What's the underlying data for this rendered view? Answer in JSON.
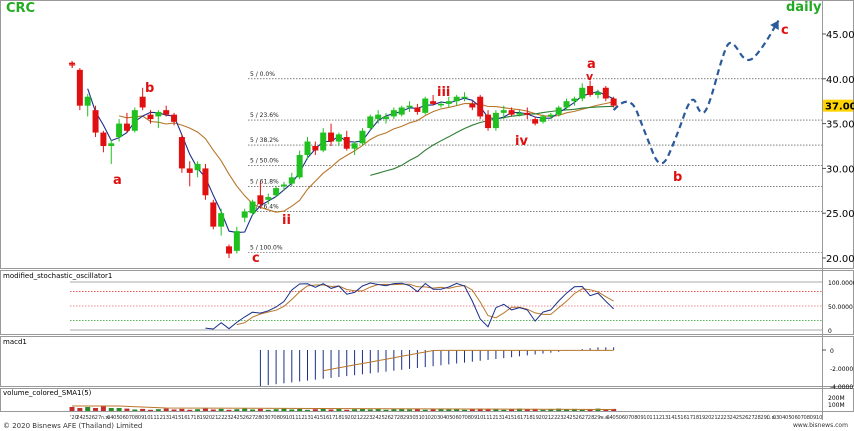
{
  "symbol": "CRC",
  "timeframe": "daily",
  "price_axis": {
    "ticks": [
      "45.00",
      "40.00",
      "35.00",
      "30.00",
      "25.00",
      "20.00"
    ],
    "current": "37.00"
  },
  "fib_levels": [
    {
      "label": "5 / 0.0%",
      "price": 40.0
    },
    {
      "label": "5 / 23.6%",
      "price": 35.4
    },
    {
      "label": "5 / 38.2%",
      "price": 32.6
    },
    {
      "label": "5 / 50.0%",
      "price": 30.3
    },
    {
      "label": "5 / 61.8%",
      "price": 28.0
    },
    {
      "label": "5 / 76.4%",
      "price": 25.2
    },
    {
      "label": "5 / 100.0%",
      "price": 20.6
    }
  ],
  "wave_labels": {
    "a1": "a",
    "b1": "b",
    "c1": "c",
    "ii": "ii",
    "iii": "iii",
    "iv": "iv",
    "a2": "a",
    "b2": "b",
    "c2": "c"
  },
  "panels": {
    "stoch": {
      "title": "modified_stochastic_oscillator1",
      "ticks": [
        "100.0000",
        "50.0000",
        "0"
      ]
    },
    "macd": {
      "title": "macd1",
      "ticks": [
        "0",
        "-2.0000",
        "-4.0000"
      ]
    },
    "volume": {
      "title": "volume_colored_SMA1(5)",
      "ticks": [
        "200M",
        "100M"
      ]
    }
  },
  "date_axis": {
    "labels": [
      "'20",
      "24",
      "25",
      "26",
      "27",
      "ก.พ.",
      "04",
      "05",
      "06",
      "07",
      "08",
      "09",
      "10",
      "11",
      "12",
      "13",
      "14",
      "15",
      "16",
      "17",
      "18",
      "19",
      "20",
      "21",
      "22",
      "23",
      "24",
      "25",
      "26",
      "27",
      "28",
      "03",
      "07",
      "08",
      "09",
      "10",
      "11",
      "12",
      "13",
      "14",
      "15",
      "16",
      "17",
      "18",
      "19",
      "20",
      "21",
      "22",
      "23",
      "24",
      "25",
      "26",
      "27",
      "28",
      "29",
      "30",
      "31",
      "01",
      "02",
      "03",
      "04",
      "05",
      "06",
      "07",
      "08",
      "09",
      "10",
      "11",
      "12",
      "13",
      "14",
      "15",
      "16",
      "17",
      "18",
      "19",
      "20",
      "21",
      "22",
      "23",
      "24",
      "25",
      "26",
      "27",
      "28",
      "29",
      "พ.ค.",
      "04",
      "05",
      "06",
      "07",
      "08",
      "09",
      "10",
      "11",
      "12",
      "13",
      "14",
      "15",
      "16",
      "17",
      "18",
      "19",
      "20",
      "21",
      "22",
      "23",
      "24",
      "25",
      "26",
      "27",
      "28",
      "29",
      "มิ.ย.",
      "03",
      "04",
      "05",
      "06",
      "07",
      "08",
      "09",
      "10"
    ]
  },
  "footer": {
    "copyright": "© 2020 Bisnews AFE (Thailand) Limited",
    "site": "www.bisnews.com"
  },
  "colors": {
    "up": "#20c020",
    "down": "#e01010",
    "sma_fast": "#1a2f8a",
    "sma_slow": "#b8762a",
    "sma_long": "#2e7d32",
    "forecast": "#2a5a9a",
    "label": "#e01010",
    "title": "#22aa22",
    "price_tag": "#ffd400"
  },
  "chart_data": {
    "type": "candlestick",
    "title": "CRC",
    "subtitle": "daily",
    "ylim": [
      18.5,
      47.5
    ],
    "candles": [
      {
        "o": 41.8,
        "h": 42.0,
        "l": 41.5,
        "c": 41.7
      },
      {
        "o": 41.0,
        "h": 41.2,
        "l": 36.5,
        "c": 37.0
      },
      {
        "o": 37.0,
        "h": 38.3,
        "l": 35.8,
        "c": 38.0
      },
      {
        "o": 36.5,
        "h": 37.0,
        "l": 33.5,
        "c": 34.0
      },
      {
        "o": 34.0,
        "h": 34.2,
        "l": 31.8,
        "c": 32.5
      },
      {
        "o": 32.5,
        "h": 33.2,
        "l": 30.5,
        "c": 32.8
      },
      {
        "o": 33.5,
        "h": 35.5,
        "l": 33.0,
        "c": 35.0
      },
      {
        "o": 35.0,
        "h": 36.2,
        "l": 34.0,
        "c": 34.2
      },
      {
        "o": 34.2,
        "h": 36.8,
        "l": 34.0,
        "c": 36.5
      },
      {
        "o": 38.0,
        "h": 39.0,
        "l": 36.5,
        "c": 36.8
      },
      {
        "o": 36.0,
        "h": 36.5,
        "l": 35.0,
        "c": 35.5
      },
      {
        "o": 35.8,
        "h": 36.5,
        "l": 34.5,
        "c": 36.3
      },
      {
        "o": 36.5,
        "h": 37.0,
        "l": 35.8,
        "c": 36.0
      },
      {
        "o": 36.0,
        "h": 36.2,
        "l": 34.8,
        "c": 35.2
      },
      {
        "o": 33.5,
        "h": 33.8,
        "l": 29.5,
        "c": 30.0
      },
      {
        "o": 30.0,
        "h": 30.8,
        "l": 28.0,
        "c": 29.5
      },
      {
        "o": 29.8,
        "h": 30.8,
        "l": 29.0,
        "c": 30.5
      },
      {
        "o": 30.0,
        "h": 30.5,
        "l": 26.5,
        "c": 27.0
      },
      {
        "o": 26.2,
        "h": 26.5,
        "l": 23.2,
        "c": 23.5
      },
      {
        "o": 23.5,
        "h": 25.5,
        "l": 22.5,
        "c": 25.0
      },
      {
        "o": 21.3,
        "h": 21.5,
        "l": 20.0,
        "c": 20.5
      },
      {
        "o": 20.8,
        "h": 23.5,
        "l": 20.5,
        "c": 23.0
      },
      {
        "o": 24.5,
        "h": 25.5,
        "l": 24.0,
        "c": 25.2
      },
      {
        "o": 25.0,
        "h": 26.5,
        "l": 24.8,
        "c": 26.3
      },
      {
        "o": 27.0,
        "h": 28.5,
        "l": 25.5,
        "c": 26.0
      },
      {
        "o": 26.5,
        "h": 27.2,
        "l": 26.0,
        "c": 26.8
      },
      {
        "o": 27.0,
        "h": 28.0,
        "l": 26.8,
        "c": 27.8
      },
      {
        "o": 28.0,
        "h": 28.5,
        "l": 27.5,
        "c": 28.2
      },
      {
        "o": 28.3,
        "h": 29.5,
        "l": 28.0,
        "c": 29.0
      },
      {
        "o": 29.0,
        "h": 32.0,
        "l": 28.8,
        "c": 31.5
      },
      {
        "o": 31.5,
        "h": 33.5,
        "l": 31.0,
        "c": 33.0
      },
      {
        "o": 32.5,
        "h": 33.0,
        "l": 31.5,
        "c": 32.0
      },
      {
        "o": 32.0,
        "h": 34.5,
        "l": 31.8,
        "c": 34.0
      },
      {
        "o": 34.0,
        "h": 35.0,
        "l": 32.5,
        "c": 33.0
      },
      {
        "o": 33.0,
        "h": 34.0,
        "l": 32.5,
        "c": 33.8
      },
      {
        "o": 33.5,
        "h": 34.2,
        "l": 32.0,
        "c": 32.2
      },
      {
        "o": 32.2,
        "h": 33.0,
        "l": 31.5,
        "c": 32.8
      },
      {
        "o": 32.8,
        "h": 34.5,
        "l": 32.5,
        "c": 34.2
      },
      {
        "o": 34.5,
        "h": 36.0,
        "l": 34.2,
        "c": 35.8
      },
      {
        "o": 35.5,
        "h": 36.5,
        "l": 35.0,
        "c": 36.0
      },
      {
        "o": 35.5,
        "h": 36.2,
        "l": 35.0,
        "c": 35.8
      },
      {
        "o": 35.8,
        "h": 36.8,
        "l": 35.5,
        "c": 36.5
      },
      {
        "o": 36.0,
        "h": 37.0,
        "l": 35.8,
        "c": 36.8
      },
      {
        "o": 36.8,
        "h": 37.5,
        "l": 36.3,
        "c": 37.0
      },
      {
        "o": 36.8,
        "h": 37.2,
        "l": 36.0,
        "c": 36.3
      },
      {
        "o": 36.2,
        "h": 38.0,
        "l": 36.0,
        "c": 37.8
      },
      {
        "o": 37.5,
        "h": 38.2,
        "l": 37.0,
        "c": 37.2
      },
      {
        "o": 37.2,
        "h": 37.5,
        "l": 36.8,
        "c": 37.2
      },
      {
        "o": 37.2,
        "h": 38.0,
        "l": 36.8,
        "c": 37.5
      },
      {
        "o": 37.5,
        "h": 38.2,
        "l": 37.0,
        "c": 38.0
      },
      {
        "o": 38.0,
        "h": 38.5,
        "l": 37.5,
        "c": 38.0
      },
      {
        "o": 37.2,
        "h": 37.5,
        "l": 36.5,
        "c": 36.8
      },
      {
        "o": 38.0,
        "h": 38.2,
        "l": 35.5,
        "c": 35.8
      },
      {
        "o": 36.0,
        "h": 36.5,
        "l": 34.2,
        "c": 34.5
      },
      {
        "o": 34.5,
        "h": 36.5,
        "l": 34.2,
        "c": 36.2
      },
      {
        "o": 36.2,
        "h": 37.0,
        "l": 35.5,
        "c": 36.5
      },
      {
        "o": 36.5,
        "h": 36.8,
        "l": 35.8,
        "c": 36.0
      },
      {
        "o": 36.0,
        "h": 36.5,
        "l": 35.8,
        "c": 36.2
      },
      {
        "o": 36.2,
        "h": 36.8,
        "l": 35.5,
        "c": 36.0
      },
      {
        "o": 35.5,
        "h": 35.8,
        "l": 34.8,
        "c": 35.0
      },
      {
        "o": 35.2,
        "h": 36.0,
        "l": 35.0,
        "c": 35.8
      },
      {
        "o": 35.8,
        "h": 36.2,
        "l": 35.5,
        "c": 36.0
      },
      {
        "o": 36.0,
        "h": 37.0,
        "l": 35.8,
        "c": 36.8
      },
      {
        "o": 36.8,
        "h": 37.8,
        "l": 36.5,
        "c": 37.5
      },
      {
        "o": 37.5,
        "h": 38.0,
        "l": 37.0,
        "c": 37.8
      },
      {
        "o": 37.8,
        "h": 39.5,
        "l": 37.5,
        "c": 39.0
      },
      {
        "o": 39.2,
        "h": 39.8,
        "l": 38.0,
        "c": 38.2
      },
      {
        "o": 38.2,
        "h": 38.8,
        "l": 37.8,
        "c": 38.5
      },
      {
        "o": 39.0,
        "h": 39.2,
        "l": 37.5,
        "c": 37.8
      },
      {
        "o": 37.8,
        "h": 38.0,
        "l": 36.8,
        "c": 37.0
      }
    ],
    "forecast_path": [
      [
        69,
        36.5
      ],
      [
        71,
        38.5
      ],
      [
        73,
        34.0
      ],
      [
        75,
        29.5
      ],
      [
        77,
        33.5
      ],
      [
        79,
        38.5
      ],
      [
        80,
        36.0
      ],
      [
        81,
        36.5
      ],
      [
        83,
        43.0
      ],
      [
        84,
        44.5
      ],
      [
        86,
        41.5
      ],
      [
        88,
        43.5
      ],
      [
        90,
        46.5
      ]
    ],
    "ylabel": "",
    "xlabel": ""
  }
}
